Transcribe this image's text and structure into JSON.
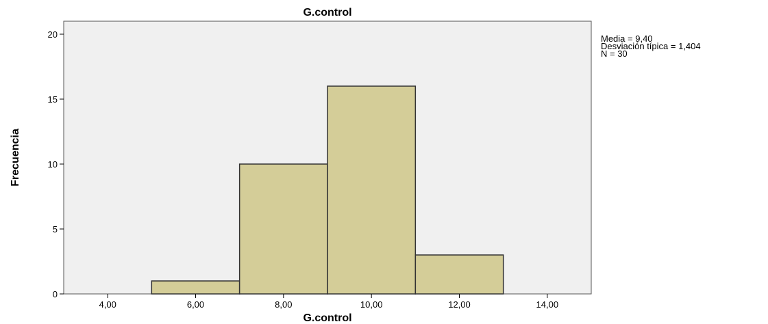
{
  "chart_data": {
    "type": "bar",
    "title": "G.control",
    "xlabel": "G.control",
    "ylabel": "Frecuencia",
    "bins": [
      {
        "from": 5,
        "to": 7,
        "count": 1
      },
      {
        "from": 7,
        "to": 9,
        "count": 10
      },
      {
        "from": 9,
        "to": 11,
        "count": 16
      },
      {
        "from": 11,
        "to": 13,
        "count": 3
      }
    ],
    "xlim": [
      3,
      15
    ],
    "ylim": [
      0,
      21
    ],
    "x_ticks": [
      4,
      6,
      8,
      10,
      12,
      14
    ],
    "x_tick_labels": [
      "4,00",
      "6,00",
      "8,00",
      "10,00",
      "12,00",
      "14,00"
    ],
    "y_ticks": [
      0,
      5,
      10,
      15,
      20
    ],
    "y_tick_labels": [
      "0",
      "5",
      "10",
      "15",
      "20"
    ],
    "grid": false,
    "colors": {
      "bar_fill": "#d4cd98",
      "bar_stroke": "#333333",
      "plot_background": "#f0f0f0"
    }
  },
  "stats": {
    "mean": "Media = 9,40",
    "std": "Desviación típica = 1,404",
    "n": "N = 30"
  }
}
